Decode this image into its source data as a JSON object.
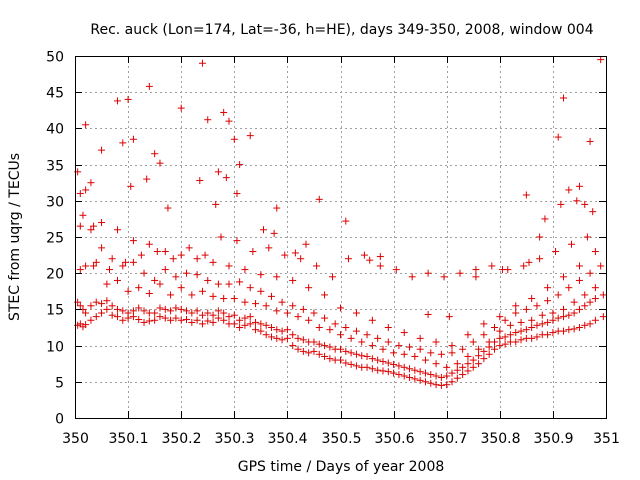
{
  "chart_data": {
    "type": "scatter",
    "title": "Rec. auck (Lon=174, Lat=-36, h=HE), days 349-350, 2008, window 004",
    "xlabel": "GPS time / Days of year 2008",
    "ylabel": "STEC from uqrg / TECUs",
    "xlim": [
      350,
      351
    ],
    "ylim": [
      0,
      50
    ],
    "x_ticks": [
      350,
      350.1,
      350.2,
      350.3,
      350.4,
      350.5,
      350.6,
      350.7,
      350.8,
      350.9,
      351
    ],
    "x_tick_labels": [
      "350",
      "350.1",
      "350.2",
      "350.3",
      "350.4",
      "350.5",
      "350.6",
      "350.7",
      "350.8",
      "350.9",
      "351"
    ],
    "y_ticks": [
      0,
      5,
      10,
      15,
      20,
      25,
      30,
      35,
      40,
      45,
      50
    ],
    "y_tick_labels": [
      "0",
      "5",
      "10",
      "15",
      "20",
      "25",
      "30",
      "35",
      "40",
      "45",
      "50"
    ],
    "grid": true,
    "marker": "plus",
    "color": "#dd0000",
    "series": [
      {
        "name": "STEC",
        "x": [
          350.005,
          350.01,
          350.015,
          350.02,
          350.03,
          350.04,
          350.05,
          350.06,
          350.07,
          350.08,
          350.09,
          350.1,
          350.11,
          350.12,
          350.13,
          350.14,
          350.15,
          350.16,
          350.17,
          350.18,
          350.19,
          350.2,
          350.21,
          350.22,
          350.23,
          350.24,
          350.25,
          350.26,
          350.27,
          350.28,
          350.29,
          350.3,
          350.31,
          350.32,
          350.33,
          350.34,
          350.35,
          350.36,
          350.37,
          350.38,
          350.39,
          350.4,
          350.41,
          350.42,
          350.43,
          350.44,
          350.45,
          350.46,
          350.47,
          350.48,
          350.49,
          350.5,
          350.51,
          350.52,
          350.53,
          350.54,
          350.55,
          350.56,
          350.57,
          350.58,
          350.59,
          350.6,
          350.61,
          350.62,
          350.63,
          350.64,
          350.65,
          350.66,
          350.67,
          350.68,
          350.69,
          350.7,
          350.71,
          350.72,
          350.73,
          350.74,
          350.75,
          350.76,
          350.77,
          350.78,
          350.79,
          350.8,
          350.81,
          350.82,
          350.83,
          350.84,
          350.85,
          350.86,
          350.87,
          350.88,
          350.89,
          350.9,
          350.91,
          350.92,
          350.93,
          350.94,
          350.95,
          350.96,
          350.97,
          350.98,
          350.995,
          350.005,
          350.01,
          350.015,
          350.02,
          350.03,
          350.04,
          350.05,
          350.06,
          350.07,
          350.08,
          350.09,
          350.1,
          350.11,
          350.12,
          350.13,
          350.14,
          350.15,
          350.16,
          350.17,
          350.18,
          350.19,
          350.2,
          350.21,
          350.22,
          350.23,
          350.24,
          350.25,
          350.26,
          350.27,
          350.28,
          350.29,
          350.3,
          350.31,
          350.32,
          350.33,
          350.34,
          350.35,
          350.36,
          350.37,
          350.38,
          350.39,
          350.4,
          350.41,
          350.42,
          350.43,
          350.44,
          350.45,
          350.46,
          350.47,
          350.48,
          350.49,
          350.5,
          350.51,
          350.52,
          350.53,
          350.54,
          350.55,
          350.56,
          350.57,
          350.58,
          350.59,
          350.6,
          350.61,
          350.62,
          350.63,
          350.64,
          350.65,
          350.66,
          350.67,
          350.68,
          350.69,
          350.7,
          350.71,
          350.72,
          350.73,
          350.74,
          350.75,
          350.76,
          350.77,
          350.78,
          350.79,
          350.8,
          350.81,
          350.82,
          350.83,
          350.84,
          350.85,
          350.86,
          350.87,
          350.88,
          350.89,
          350.9,
          350.91,
          350.92,
          350.93,
          350.94,
          350.95,
          350.96,
          350.97,
          350.98,
          350.995,
          350.01,
          350.02,
          350.04,
          350.06,
          350.08,
          350.1,
          350.12,
          350.14,
          350.16,
          350.18,
          350.2,
          350.22,
          350.24,
          350.26,
          350.28,
          350.3,
          350.32,
          350.34,
          350.36,
          350.38,
          350.4,
          350.42,
          350.44,
          350.46,
          350.48,
          350.5,
          350.52,
          350.54,
          350.56,
          350.58,
          350.6,
          350.62,
          350.64,
          350.66,
          350.68,
          350.7,
          350.72,
          350.74,
          350.76,
          350.78,
          350.8,
          350.82,
          350.84,
          350.86,
          350.88,
          350.9,
          350.92,
          350.94,
          350.96,
          350.98,
          350.01,
          350.03,
          350.05,
          350.07,
          350.09,
          350.11,
          350.13,
          350.15,
          350.17,
          350.19,
          350.21,
          350.23,
          350.25,
          350.27,
          350.29,
          350.31,
          350.33,
          350.35,
          350.37,
          350.39,
          350.41,
          350.43,
          350.45,
          350.47,
          350.49,
          350.51,
          350.53,
          350.55,
          350.57,
          350.59,
          350.61,
          350.63,
          350.65,
          350.67,
          350.69,
          350.71,
          350.73,
          350.75,
          350.77,
          350.79,
          350.81,
          350.83,
          350.85,
          350.87,
          350.89,
          350.91,
          350.93,
          350.95,
          350.97,
          350.99,
          350.02,
          350.05,
          350.08,
          350.11,
          350.14,
          350.17,
          350.2,
          350.23,
          350.26,
          350.29,
          350.32,
          350.35,
          350.38,
          350.41,
          350.44,
          350.47,
          350.5,
          350.53,
          350.56,
          350.59,
          350.62,
          350.65,
          350.68,
          350.71,
          350.74,
          350.77,
          350.8,
          350.83,
          350.86,
          350.89,
          350.92,
          350.95,
          350.98,
          350.035,
          350.065,
          350.095,
          350.125,
          350.155,
          350.185,
          350.215,
          350.245,
          350.275,
          350.305,
          350.335,
          350.365,
          350.395,
          350.425,
          350.455,
          350.485,
          350.515,
          350.545,
          350.575,
          350.605,
          350.635,
          350.665,
          350.695,
          350.725,
          350.755,
          350.785,
          350.815,
          350.845,
          350.875,
          350.905,
          350.935,
          350.965,
          350.005,
          350.01,
          350.02,
          350.03,
          350.05,
          350.08,
          350.09,
          350.1,
          350.11,
          350.14,
          350.15,
          350.16,
          350.2,
          350.24,
          350.25,
          350.27,
          350.28,
          350.29,
          350.3,
          350.31,
          350.33,
          350.38,
          350.46,
          350.51,
          350.85,
          350.91,
          350.92,
          350.93,
          350.95,
          350.96,
          350.97,
          350.99,
          350.015,
          350.035,
          350.105,
          350.135,
          350.175,
          350.235,
          350.265,
          350.285,
          350.305,
          350.355,
          350.375,
          350.415,
          350.435,
          350.555,
          350.575,
          350.665,
          350.705,
          350.755,
          350.805,
          350.855,
          350.875,
          350.885,
          350.915,
          350.945,
          350.975
        ],
        "y": [
          12.8,
          13.0,
          12.6,
          12.9,
          13.5,
          14.0,
          14.5,
          15.0,
          14.2,
          14.0,
          13.5,
          13.8,
          14.0,
          13.6,
          13.2,
          13.4,
          13.5,
          14.0,
          13.8,
          13.5,
          13.8,
          13.5,
          13.6,
          13.2,
          13.5,
          13.0,
          13.4,
          13.2,
          13.8,
          13.5,
          13.0,
          13.0,
          12.5,
          12.8,
          13.0,
          12.2,
          12.0,
          11.5,
          11.2,
          11.0,
          10.8,
          11.0,
          10.0,
          9.5,
          9.2,
          9.0,
          9.2,
          8.8,
          8.5,
          8.2,
          8.0,
          8.0,
          7.6,
          7.4,
          7.2,
          7.0,
          7.0,
          6.8,
          6.6,
          6.5,
          6.4,
          6.2,
          6.0,
          5.8,
          5.6,
          5.4,
          5.2,
          5.0,
          4.8,
          4.6,
          4.5,
          4.6,
          5.0,
          5.5,
          6.0,
          6.5,
          7.0,
          7.5,
          8.2,
          8.8,
          9.5,
          10.0,
          10.2,
          10.5,
          10.5,
          10.8,
          11.0,
          11.0,
          11.2,
          11.5,
          11.5,
          11.8,
          12.0,
          12.0,
          12.2,
          12.3,
          12.5,
          12.8,
          13.0,
          13.5,
          14.0,
          16.0,
          15.5,
          15.0,
          14.5,
          15.5,
          16.0,
          15.8,
          16.2,
          15.5,
          15.0,
          14.8,
          14.5,
          14.8,
          15.2,
          14.8,
          14.5,
          14.5,
          15.2,
          15.0,
          14.8,
          15.2,
          15.0,
          14.8,
          14.5,
          14.8,
          14.2,
          14.5,
          14.2,
          14.8,
          14.5,
          14.0,
          14.2,
          13.5,
          13.8,
          14.0,
          13.2,
          13.0,
          12.8,
          12.5,
          12.2,
          12.0,
          12.2,
          11.5,
          11.0,
          10.8,
          10.5,
          10.5,
          10.2,
          10.0,
          9.8,
          9.5,
          9.5,
          9.2,
          9.0,
          8.8,
          8.6,
          8.5,
          8.2,
          8.0,
          7.8,
          7.6,
          7.4,
          7.2,
          7.0,
          6.8,
          6.6,
          6.4,
          6.2,
          6.0,
          5.8,
          5.6,
          5.8,
          6.2,
          6.6,
          7.0,
          7.5,
          8.0,
          8.6,
          9.2,
          9.8,
          10.5,
          11.0,
          11.2,
          11.5,
          11.8,
          12.0,
          12.2,
          12.5,
          12.8,
          13.0,
          13.2,
          13.5,
          13.8,
          14.0,
          14.2,
          14.5,
          15.0,
          15.5,
          16.0,
          16.5,
          17.0,
          20.5,
          21.0,
          21.5,
          18.5,
          19.0,
          17.5,
          18.0,
          17.2,
          18.5,
          17.0,
          18.0,
          17.0,
          17.5,
          16.8,
          16.5,
          16.5,
          16.0,
          15.8,
          15.5,
          14.8,
          14.5,
          14.0,
          13.5,
          12.5,
          12.2,
          11.5,
          11.0,
          10.5,
          10.0,
          9.5,
          9.0,
          8.8,
          8.5,
          8.0,
          7.5,
          7.0,
          7.5,
          8.5,
          9.5,
          10.5,
          12.0,
          12.8,
          13.2,
          13.5,
          14.2,
          14.5,
          15.0,
          16.0,
          17.0,
          18.0,
          26.5,
          26.0,
          23.5,
          22.0,
          21.0,
          21.5,
          20.0,
          19.0,
          20.5,
          19.5,
          20.0,
          19.8,
          19.0,
          18.5,
          18.5,
          18.8,
          18.0,
          17.5,
          16.8,
          16.0,
          15.5,
          15.0,
          14.5,
          13.8,
          13.0,
          12.5,
          12.0,
          11.5,
          11.0,
          10.5,
          10.0,
          9.8,
          9.5,
          9.0,
          8.8,
          9.0,
          9.5,
          10.5,
          11.5,
          12.5,
          13.5,
          14.5,
          15.0,
          15.5,
          16.2,
          17.0,
          18.0,
          19.0,
          20.0,
          21.0,
          31.5,
          27.0,
          26.0,
          24.5,
          24.0,
          23.0,
          22.5,
          22.0,
          21.5,
          21.0,
          20.5,
          19.8,
          19.5,
          19.0,
          18.0,
          17.0,
          15.2,
          14.5,
          13.5,
          12.5,
          11.8,
          11.0,
          10.5,
          10.0,
          11.5,
          13.0,
          14.0,
          15.5,
          16.5,
          18.0,
          19.5,
          21.0,
          23.0,
          21.0,
          20.5,
          21.5,
          22.5,
          23.0,
          22.0,
          23.5,
          22.5,
          25.0,
          24.5,
          23.0,
          23.5,
          22.5,
          22.0,
          21.0,
          19.5,
          22.0,
          22.5,
          21.0,
          20.5,
          19.5,
          20.0,
          19.5,
          20.0,
          20.5,
          21.0,
          20.5,
          21.0,
          22.0,
          23.0,
          24.0,
          25.0,
          34.0,
          31.0,
          40.5,
          32.5,
          37.0,
          43.8,
          38.0,
          44.0,
          38.5,
          45.8,
          36.5,
          35.2,
          42.8,
          49.0,
          41.2,
          34.0,
          42.2,
          41.0,
          38.5,
          35.0,
          39.0,
          29.0,
          30.2,
          27.2,
          30.8,
          38.8,
          44.2,
          31.5,
          32.0,
          29.5,
          38.2,
          49.5,
          28.0,
          26.5,
          32.0,
          33.0,
          29.0,
          32.8,
          29.5,
          33.2,
          31.0,
          26.0,
          25.5,
          22.8,
          24.0,
          21.8,
          22.3,
          14.3,
          14.0,
          19.5,
          20.5,
          21.5,
          25.0,
          27.5,
          29.5,
          30.0,
          28.5
        ]
      }
    ]
  }
}
